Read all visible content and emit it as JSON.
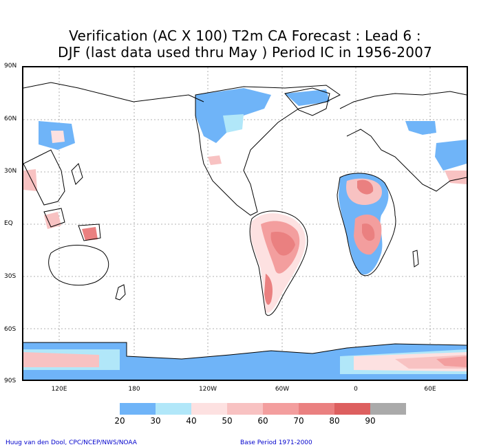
{
  "title": {
    "line1": "Verification (AC X 100) T2m CA Forecast : Lead 6 :",
    "line2": "DJF (last data used thru May ) Period IC in 1956-2007"
  },
  "map": {
    "lat_labels": [
      "90N",
      "60N",
      "30N",
      "EQ",
      "30S",
      "60S",
      "90S"
    ],
    "lon_labels": [
      "120E",
      "180",
      "120W",
      "60W",
      "0",
      "60E"
    ]
  },
  "legend": {
    "labels": [
      "20",
      "30",
      "40",
      "50",
      "60",
      "70",
      "80",
      "90"
    ],
    "colors": [
      "#6fb4f8",
      "#b1e7f9",
      "#fde1e1",
      "#f8c2c2",
      "#f39e9e",
      "#ea8080",
      "#dd5f5f",
      "#aaaaaa"
    ]
  },
  "footer": {
    "left": "Huug van den Dool, CPC/NCEP/NWS/NOAA",
    "right": "Base Period 1971-2000"
  }
}
